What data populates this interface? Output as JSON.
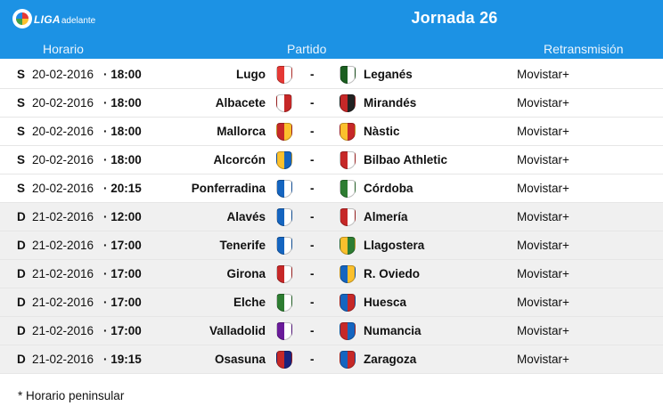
{
  "header": {
    "logo_text_bold": "LIGA",
    "logo_text_small": "adelante",
    "title": "Jornada 26",
    "columns": {
      "horario": "Horario",
      "partido": "Partido",
      "retransmision": "Retransmisión"
    }
  },
  "matches": [
    {
      "day": "S",
      "date": "20-02-2016",
      "time": "· 18:00",
      "home": "Lugo",
      "away": "Leganés",
      "separator": "-",
      "tv": "Movistar+",
      "home_colors": [
        "#e53935",
        "#ffffff"
      ],
      "away_colors": [
        "#1b5e20",
        "#ffffff"
      ]
    },
    {
      "day": "S",
      "date": "20-02-2016",
      "time": "· 18:00",
      "home": "Albacete",
      "away": "Mirandés",
      "separator": "-",
      "tv": "Movistar+",
      "home_colors": [
        "#ffffff",
        "#c62828"
      ],
      "away_colors": [
        "#c62828",
        "#222222"
      ]
    },
    {
      "day": "S",
      "date": "20-02-2016",
      "time": "· 18:00",
      "home": "Mallorca",
      "away": "Nàstic",
      "separator": "-",
      "tv": "Movistar+",
      "home_colors": [
        "#c62828",
        "#fbc02d"
      ],
      "away_colors": [
        "#fbc02d",
        "#c62828"
      ]
    },
    {
      "day": "S",
      "date": "20-02-2016",
      "time": "· 18:00",
      "home": "Alcorcón",
      "away": "Bilbao Athletic",
      "separator": "-",
      "tv": "Movistar+",
      "home_colors": [
        "#fbc02d",
        "#1565c0"
      ],
      "away_colors": [
        "#c62828",
        "#ffffff"
      ]
    },
    {
      "day": "S",
      "date": "20-02-2016",
      "time": "· 20:15",
      "home": "Ponferradina",
      "away": "Córdoba",
      "separator": "-",
      "tv": "Movistar+",
      "home_colors": [
        "#1565c0",
        "#ffffff"
      ],
      "away_colors": [
        "#2e7d32",
        "#ffffff"
      ]
    },
    {
      "day": "D",
      "date": "21-02-2016",
      "time": "· 12:00",
      "home": "Alavés",
      "away": "Almería",
      "separator": "-",
      "tv": "Movistar+",
      "home_colors": [
        "#1565c0",
        "#ffffff"
      ],
      "away_colors": [
        "#c62828",
        "#ffffff"
      ]
    },
    {
      "day": "D",
      "date": "21-02-2016",
      "time": "· 17:00",
      "home": "Tenerife",
      "away": "Llagostera",
      "separator": "-",
      "tv": "Movistar+",
      "home_colors": [
        "#1565c0",
        "#ffffff"
      ],
      "away_colors": [
        "#fbc02d",
        "#2e7d32"
      ]
    },
    {
      "day": "D",
      "date": "21-02-2016",
      "time": "· 17:00",
      "home": "Girona",
      "away": "R. Oviedo",
      "separator": "-",
      "tv": "Movistar+",
      "home_colors": [
        "#c62828",
        "#ffffff"
      ],
      "away_colors": [
        "#1565c0",
        "#fbc02d"
      ]
    },
    {
      "day": "D",
      "date": "21-02-2016",
      "time": "· 17:00",
      "home": "Elche",
      "away": "Huesca",
      "separator": "-",
      "tv": "Movistar+",
      "home_colors": [
        "#2e7d32",
        "#ffffff"
      ],
      "away_colors": [
        "#1565c0",
        "#c62828"
      ]
    },
    {
      "day": "D",
      "date": "21-02-2016",
      "time": "· 17:00",
      "home": "Valladolid",
      "away": "Numancia",
      "separator": "-",
      "tv": "Movistar+",
      "home_colors": [
        "#6a1b9a",
        "#ffffff"
      ],
      "away_colors": [
        "#c62828",
        "#1565c0"
      ]
    },
    {
      "day": "D",
      "date": "21-02-2016",
      "time": "· 19:15",
      "home": "Osasuna",
      "away": "Zaragoza",
      "separator": "-",
      "tv": "Movistar+",
      "home_colors": [
        "#c62828",
        "#1a237e"
      ],
      "away_colors": [
        "#1565c0",
        "#c62828"
      ]
    }
  ],
  "footnote": "* Horario peninsular",
  "colors": {
    "header_bg": "#1c92e4",
    "alt_row": "#f0f0f0"
  }
}
